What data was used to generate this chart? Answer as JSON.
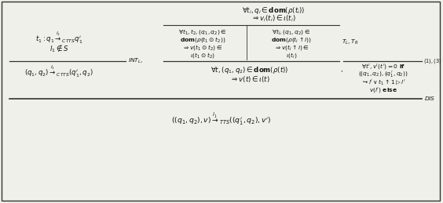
{
  "bg_color": "#f0f0eb",
  "border_color": "#333333",
  "text_color": "#111111",
  "fig_width": 5.64,
  "fig_height": 2.59,
  "dpi": 100
}
